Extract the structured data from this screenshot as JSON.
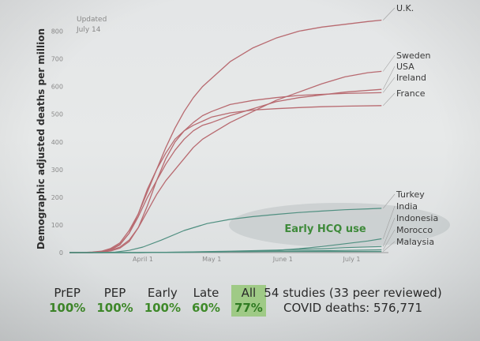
{
  "chart_data": {
    "type": "line",
    "ylabel": "Demographic adjusted deaths per million",
    "update_note": [
      "Updated",
      "July 14"
    ],
    "ylim": [
      0,
      850
    ],
    "yticks": [
      0,
      100,
      200,
      300,
      400,
      500,
      600,
      700,
      800
    ],
    "xticks": [
      {
        "label": "April 1",
        "day": 32
      },
      {
        "label": "May 1",
        "day": 62
      },
      {
        "label": "June 1",
        "day": 93
      },
      {
        "label": "July 1",
        "day": 123
      }
    ],
    "xlim_days": [
      0,
      139
    ],
    "annotation": "Early HCQ use",
    "series": [
      {
        "name": "U.K.",
        "group": "late",
        "color": "#b86a70",
        "points": [
          [
            0,
            0
          ],
          [
            5,
            0
          ],
          [
            10,
            2
          ],
          [
            14,
            5
          ],
          [
            18,
            15
          ],
          [
            22,
            35
          ],
          [
            26,
            80
          ],
          [
            30,
            140
          ],
          [
            34,
            220
          ],
          [
            38,
            300
          ],
          [
            42,
            380
          ],
          [
            46,
            450
          ],
          [
            50,
            510
          ],
          [
            54,
            560
          ],
          [
            58,
            600
          ],
          [
            62,
            630
          ],
          [
            70,
            690
          ],
          [
            80,
            740
          ],
          [
            90,
            775
          ],
          [
            100,
            800
          ],
          [
            110,
            815
          ],
          [
            120,
            825
          ],
          [
            130,
            835
          ],
          [
            136,
            840
          ]
        ]
      },
      {
        "name": "Sweden",
        "group": "late",
        "color": "#b86a70",
        "points": [
          [
            0,
            0
          ],
          [
            10,
            0
          ],
          [
            14,
            3
          ],
          [
            18,
            8
          ],
          [
            22,
            20
          ],
          [
            26,
            45
          ],
          [
            30,
            90
          ],
          [
            34,
            150
          ],
          [
            38,
            210
          ],
          [
            42,
            260
          ],
          [
            46,
            300
          ],
          [
            50,
            340
          ],
          [
            54,
            380
          ],
          [
            58,
            410
          ],
          [
            62,
            430
          ],
          [
            70,
            470
          ],
          [
            80,
            510
          ],
          [
            90,
            550
          ],
          [
            100,
            580
          ],
          [
            110,
            610
          ],
          [
            120,
            635
          ],
          [
            130,
            650
          ],
          [
            136,
            655
          ]
        ]
      },
      {
        "name": "USA",
        "group": "late",
        "color": "#b86a70",
        "points": [
          [
            0,
            0
          ],
          [
            10,
            0
          ],
          [
            14,
            3
          ],
          [
            18,
            10
          ],
          [
            22,
            28
          ],
          [
            26,
            70
          ],
          [
            30,
            130
          ],
          [
            34,
            200
          ],
          [
            38,
            260
          ],
          [
            42,
            320
          ],
          [
            46,
            370
          ],
          [
            50,
            410
          ],
          [
            54,
            440
          ],
          [
            58,
            460
          ],
          [
            62,
            470
          ],
          [
            70,
            495
          ],
          [
            80,
            520
          ],
          [
            90,
            545
          ],
          [
            100,
            560
          ],
          [
            110,
            570
          ],
          [
            120,
            580
          ],
          [
            136,
            590
          ]
        ]
      },
      {
        "name": "Ireland",
        "group": "late",
        "color": "#b86a70",
        "points": [
          [
            0,
            0
          ],
          [
            10,
            0
          ],
          [
            14,
            2
          ],
          [
            18,
            6
          ],
          [
            22,
            16
          ],
          [
            26,
            40
          ],
          [
            30,
            90
          ],
          [
            34,
            170
          ],
          [
            38,
            260
          ],
          [
            42,
            340
          ],
          [
            46,
            400
          ],
          [
            50,
            440
          ],
          [
            54,
            470
          ],
          [
            58,
            495
          ],
          [
            62,
            510
          ],
          [
            70,
            535
          ],
          [
            80,
            550
          ],
          [
            90,
            560
          ],
          [
            100,
            568
          ],
          [
            110,
            572
          ],
          [
            120,
            575
          ],
          [
            136,
            578
          ]
        ]
      },
      {
        "name": "France",
        "group": "late",
        "color": "#b86a70",
        "points": [
          [
            0,
            0
          ],
          [
            10,
            0
          ],
          [
            14,
            4
          ],
          [
            18,
            12
          ],
          [
            22,
            30
          ],
          [
            26,
            70
          ],
          [
            30,
            140
          ],
          [
            34,
            230
          ],
          [
            38,
            300
          ],
          [
            42,
            360
          ],
          [
            46,
            410
          ],
          [
            50,
            440
          ],
          [
            54,
            460
          ],
          [
            58,
            475
          ],
          [
            62,
            490
          ],
          [
            70,
            505
          ],
          [
            80,
            515
          ],
          [
            90,
            520
          ],
          [
            100,
            524
          ],
          [
            110,
            527
          ],
          [
            120,
            529
          ],
          [
            136,
            531
          ]
        ]
      },
      {
        "name": "Turkey",
        "group": "early",
        "color": "#4f8f80",
        "points": [
          [
            0,
            0
          ],
          [
            14,
            0
          ],
          [
            20,
            2
          ],
          [
            26,
            8
          ],
          [
            32,
            20
          ],
          [
            40,
            45
          ],
          [
            50,
            80
          ],
          [
            60,
            105
          ],
          [
            70,
            120
          ],
          [
            80,
            130
          ],
          [
            90,
            138
          ],
          [
            100,
            145
          ],
          [
            110,
            150
          ],
          [
            120,
            155
          ],
          [
            130,
            158
          ],
          [
            136,
            160
          ]
        ]
      },
      {
        "name": "India",
        "group": "early",
        "color": "#4f8f80",
        "points": [
          [
            0,
            0
          ],
          [
            30,
            0
          ],
          [
            50,
            1
          ],
          [
            70,
            3
          ],
          [
            90,
            8
          ],
          [
            100,
            14
          ],
          [
            110,
            22
          ],
          [
            120,
            32
          ],
          [
            130,
            42
          ],
          [
            136,
            50
          ]
        ]
      },
      {
        "name": "Indonesia",
        "group": "early",
        "color": "#4f8f80",
        "points": [
          [
            0,
            0
          ],
          [
            30,
            0
          ],
          [
            50,
            2
          ],
          [
            70,
            5
          ],
          [
            90,
            9
          ],
          [
            110,
            14
          ],
          [
            120,
            18
          ],
          [
            136,
            22
          ]
        ]
      },
      {
        "name": "Morocco",
        "group": "early",
        "color": "#4f8f80",
        "points": [
          [
            0,
            0
          ],
          [
            30,
            0
          ],
          [
            50,
            1
          ],
          [
            70,
            3
          ],
          [
            90,
            5
          ],
          [
            110,
            7
          ],
          [
            120,
            8
          ],
          [
            136,
            10
          ]
        ]
      },
      {
        "name": "Malaysia",
        "group": "early",
        "color": "#4f8f80",
        "points": [
          [
            0,
            0
          ],
          [
            30,
            0
          ],
          [
            50,
            2
          ],
          [
            70,
            3
          ],
          [
            90,
            4
          ],
          [
            110,
            4
          ],
          [
            120,
            4
          ],
          [
            136,
            4
          ]
        ]
      }
    ]
  },
  "stats": [
    {
      "label": "PrEP",
      "value": "100%"
    },
    {
      "label": "PEP",
      "value": "100%"
    },
    {
      "label": "Early",
      "value": "100%"
    },
    {
      "label": "Late",
      "value": "60%"
    },
    {
      "label": "All",
      "value": "77%"
    }
  ],
  "summary": {
    "studies": "54 studies (33 peer reviewed)",
    "deaths": "COVID deaths: 576,771"
  }
}
